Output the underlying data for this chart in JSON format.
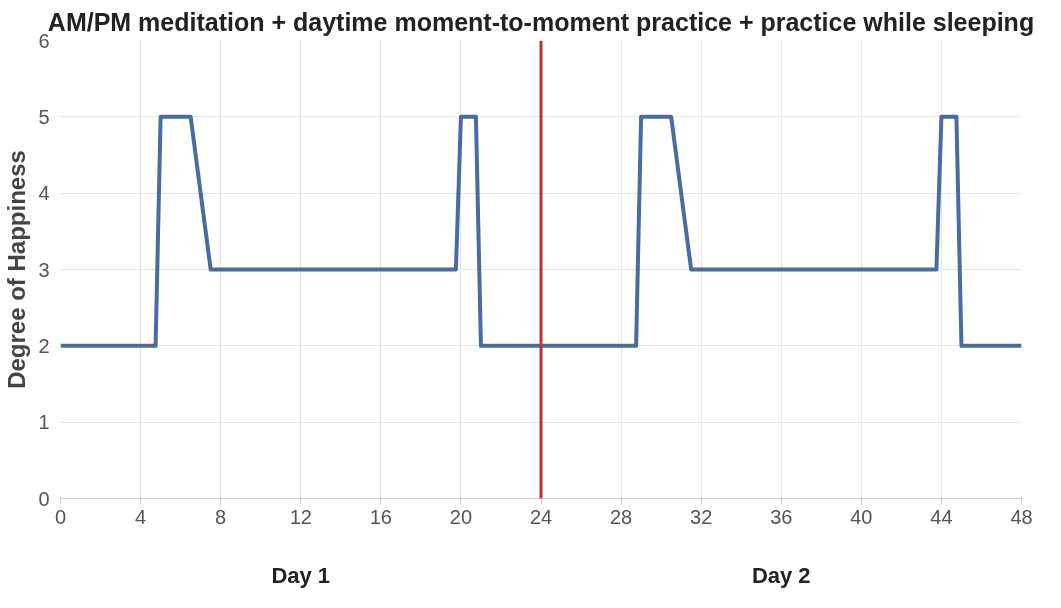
{
  "chart_data": {
    "type": "line",
    "title": "AM/PM meditation + daytime moment-to-moment practice + practice while sleeping",
    "ylabel": "Degree of Happiness",
    "x": [
      0,
      4.75,
      5,
      6.5,
      7.5,
      19.75,
      20,
      20.75,
      21,
      28.75,
      29,
      30.5,
      31.5,
      43.75,
      44,
      44.75,
      45,
      48
    ],
    "series": [
      {
        "color": "#4a6b9e",
        "values": [
          2,
          2,
          5,
          5,
          3,
          3,
          5,
          5,
          2,
          2,
          5,
          5,
          3,
          3,
          5,
          5,
          2,
          2
        ]
      }
    ],
    "xlim": [
      0,
      48
    ],
    "xticks": [
      0,
      4,
      8,
      12,
      16,
      20,
      24,
      28,
      32,
      36,
      40,
      44,
      48
    ],
    "ylim": [
      0,
      6
    ],
    "yticks": [
      0,
      1,
      2,
      3,
      4,
      5,
      6
    ],
    "ref_lines": [
      {
        "axis": "x",
        "value": 24,
        "color": "#b5373a"
      }
    ],
    "annotations": [
      "Day 1",
      "Day 2"
    ],
    "grid": true,
    "marker": "none",
    "line_style": "solid"
  }
}
